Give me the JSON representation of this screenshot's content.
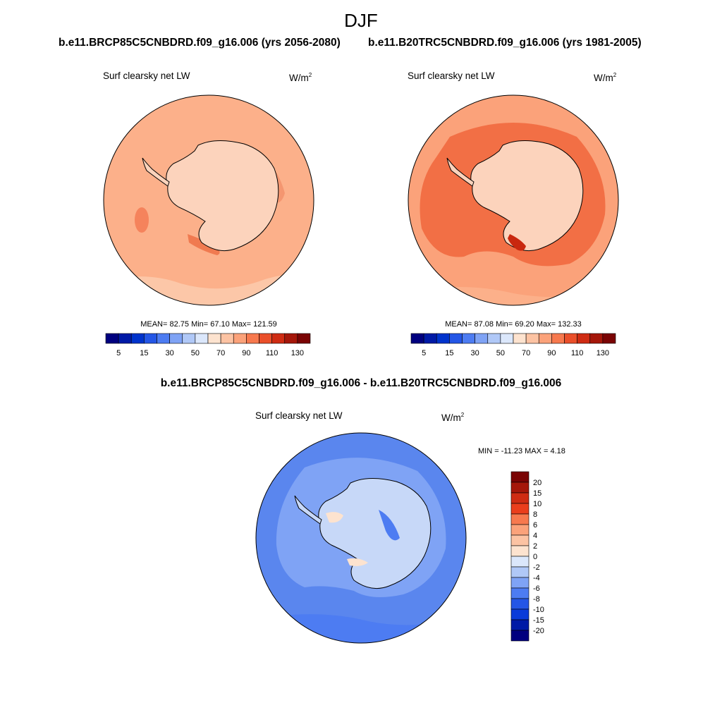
{
  "season": "DJF",
  "left_case_title": "b.e11.BRCP85C5CNBDRD.f09_g16.006 (yrs 2056-2080)",
  "right_case_title": "b.e11.B20TRC5CNBDRD.f09_g16.006 (yrs 1981-2005)",
  "diff_title": "b.e11.BRCP85C5CNBDRD.f09_g16.006 - b.e11.B20TRC5CNBDRD.f09_g16.006",
  "variable": "Surf clearsky net LW",
  "units_base": "W/m",
  "units_exp": "2",
  "chart_data": [
    {
      "type": "heatmap",
      "projection": "south-polar-stereographic",
      "title": "Surf clearsky net LW",
      "case": "b.e11.BRCP85C5CNBDRD.f09_g16.006 (yrs 2056-2080)",
      "stats": {
        "mean": "82.75",
        "min": "67.10",
        "max": "121.59"
      },
      "stats_text": "MEAN=  82.75  Min=  67.10  Max= 121.59",
      "colorbar_levels": [
        5,
        10,
        15,
        20,
        30,
        40,
        50,
        60,
        70,
        80,
        90,
        100,
        110,
        120,
        130
      ],
      "colorbar_labels": [
        "5",
        "15",
        "30",
        "50",
        "70",
        "90",
        "110",
        "130"
      ],
      "colors": [
        "#00007f",
        "#001aa6",
        "#0033cc",
        "#2456e6",
        "#4d7cf2",
        "#7fa3f5",
        "#b0c8f7",
        "#dbe7fb",
        "#fde3cf",
        "#fcc3a3",
        "#fba27a",
        "#f7794e",
        "#ea4f2a",
        "#cf2c13",
        "#a5170a",
        "#7a0404"
      ],
      "dominant_value_range": [
        70,
        100
      ]
    },
    {
      "type": "heatmap",
      "projection": "south-polar-stereographic",
      "title": "Surf clearsky net LW",
      "case": "b.e11.B20TRC5CNBDRD.f09_g16.006 (yrs 1981-2005)",
      "stats": {
        "mean": "87.08",
        "min": "69.20",
        "max": "132.33"
      },
      "stats_text": "MEAN=  87.08  Min=  69.20  Max= 132.33",
      "colorbar_levels": [
        5,
        10,
        15,
        20,
        30,
        40,
        50,
        60,
        70,
        80,
        90,
        100,
        110,
        120,
        130
      ],
      "colorbar_labels": [
        "5",
        "15",
        "30",
        "50",
        "70",
        "90",
        "110",
        "130"
      ],
      "colors": [
        "#00007f",
        "#001aa6",
        "#0033cc",
        "#2456e6",
        "#4d7cf2",
        "#7fa3f5",
        "#b0c8f7",
        "#dbe7fb",
        "#fde3cf",
        "#fcc3a3",
        "#fba27a",
        "#f7794e",
        "#ea4f2a",
        "#cf2c13",
        "#a5170a",
        "#7a0404"
      ],
      "dominant_value_range": [
        70,
        110
      ]
    },
    {
      "type": "heatmap",
      "projection": "south-polar-stereographic",
      "title": "Surf clearsky net LW",
      "case": "b.e11.BRCP85C5CNBDRD.f09_g16.006 - b.e11.B20TRC5CNBDRD.f09_g16.006",
      "stats": {
        "min": "-11.23",
        "max": "4.18"
      },
      "stats_text": "MIN = -11.23 MAX =   4.18",
      "colorbar_levels": [
        20,
        15,
        10,
        8,
        6,
        4,
        2,
        0,
        -2,
        -4,
        -6,
        -8,
        -10,
        -15,
        -20
      ],
      "colorbar_labels": [
        "20",
        "15",
        "10",
        "8",
        "6",
        "4",
        "2",
        "0",
        "-2",
        "-4",
        "-6",
        "-8",
        "-10",
        "-15",
        "-20"
      ],
      "colors": [
        "#7a0404",
        "#a5170a",
        "#cf2c13",
        "#ea3e1c",
        "#f7794e",
        "#fba27a",
        "#fcc3a3",
        "#fde3cf",
        "#dbe7fb",
        "#b0c8f7",
        "#7fa3f5",
        "#4d7cf2",
        "#2456e6",
        "#0a3bd9",
        "#001aa6",
        "#00007f"
      ],
      "dominant_value_range": [
        -8,
        0
      ]
    }
  ]
}
